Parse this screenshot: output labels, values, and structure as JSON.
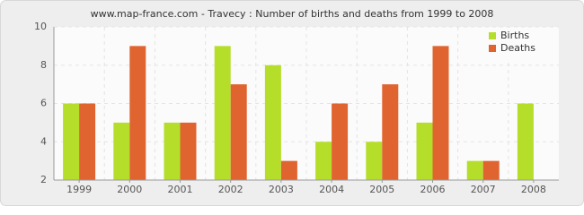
{
  "chart_data": {
    "type": "bar",
    "title": "www.map-france.com - Travecy : Number of births and deaths from 1999 to 2008",
    "categories": [
      "1999",
      "2000",
      "2001",
      "2002",
      "2003",
      "2004",
      "2005",
      "2006",
      "2007",
      "2008"
    ],
    "series": [
      {
        "name": "Births",
        "color": "#b5de2b",
        "values": [
          6,
          5,
          5,
          9,
          8,
          4,
          4,
          5,
          3,
          6
        ]
      },
      {
        "name": "Deaths",
        "color": "#e0642f",
        "values": [
          6,
          9,
          5,
          7,
          3,
          6,
          7,
          9,
          3,
          2
        ]
      }
    ],
    "ylim": [
      2,
      10
    ],
    "yticks": [
      2,
      4,
      6,
      8,
      10
    ],
    "grid": true,
    "legend": "top-right"
  }
}
